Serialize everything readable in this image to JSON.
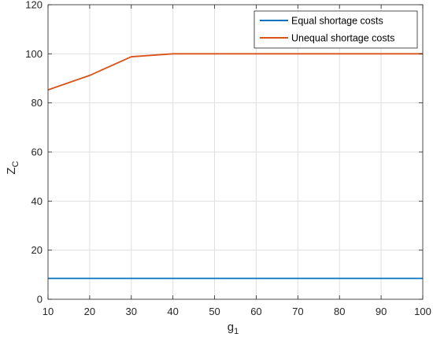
{
  "chart_data": {
    "type": "line",
    "xlabel": "g",
    "xlabel_sub": "1",
    "ylabel": "Z",
    "ylabel_sub": "C",
    "xlim": [
      10,
      100
    ],
    "ylim": [
      0,
      120
    ],
    "xticks": [
      10,
      20,
      30,
      40,
      50,
      60,
      70,
      80,
      90,
      100
    ],
    "yticks": [
      0,
      20,
      40,
      60,
      80,
      100,
      120
    ],
    "grid": true,
    "legend_position": "top-right",
    "x": [
      10,
      20,
      30,
      40,
      50,
      60,
      70,
      80,
      90,
      100
    ],
    "series": [
      {
        "name": "Equal shortage costs",
        "color": "#0072BD",
        "values": [
          8.5,
          8.5,
          8.5,
          8.5,
          8.5,
          8.5,
          8.5,
          8.5,
          8.5,
          8.5
        ]
      },
      {
        "name": "Unequal shortage costs",
        "color": "#D95319",
        "values": [
          85.3,
          91.2,
          98.8,
          100,
          100,
          100,
          100,
          100,
          100,
          100
        ]
      }
    ]
  }
}
